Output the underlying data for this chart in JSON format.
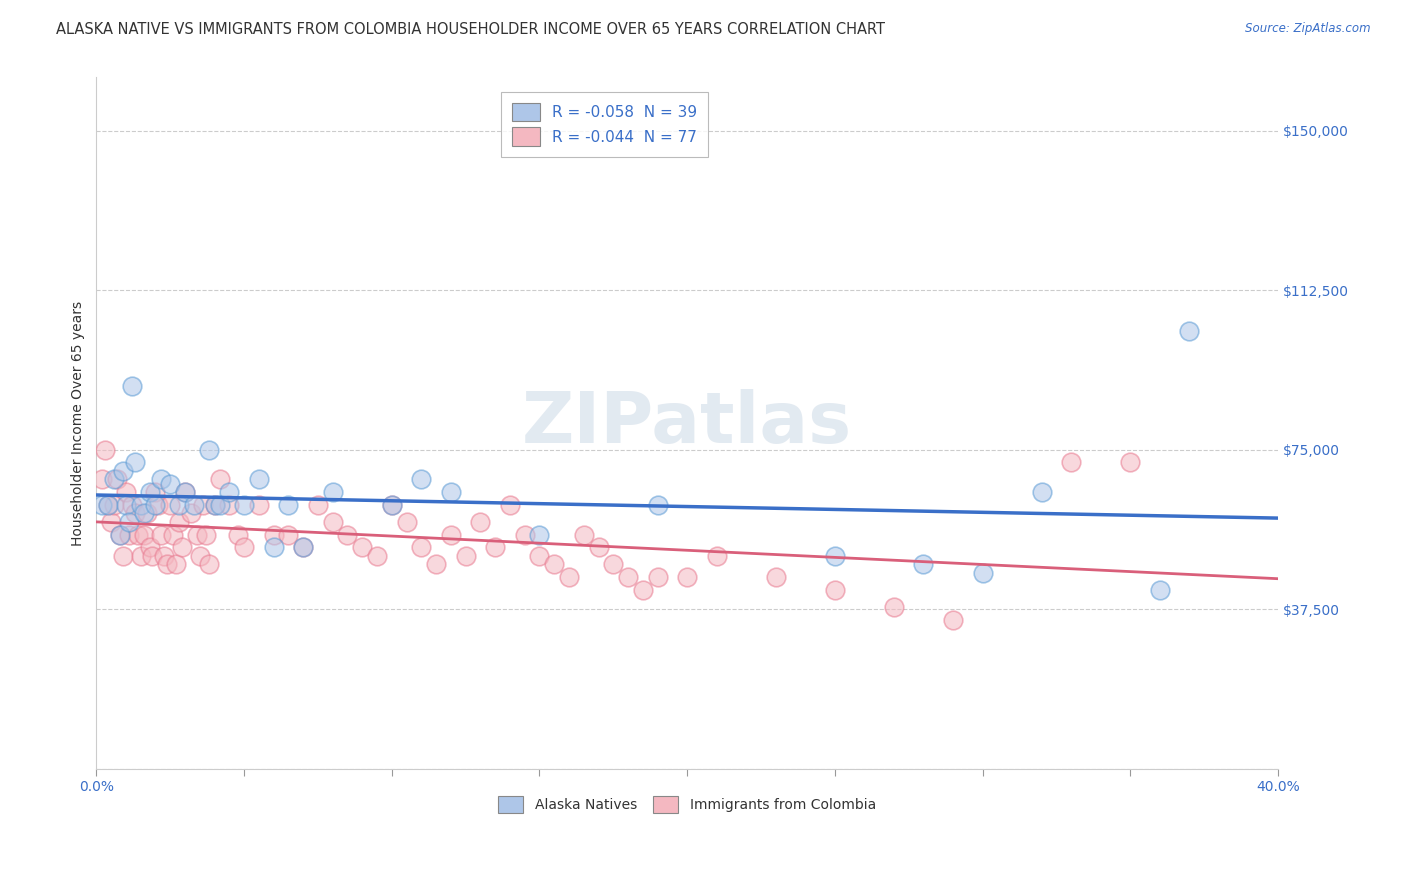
{
  "title": "ALASKA NATIVE VS IMMIGRANTS FROM COLOMBIA HOUSEHOLDER INCOME OVER 65 YEARS CORRELATION CHART",
  "source": "Source: ZipAtlas.com",
  "ylabel": "Householder Income Over 65 years",
  "xlim": [
    0.0,
    0.4
  ],
  "ylim": [
    0,
    162500
  ],
  "yticks": [
    0,
    37500,
    75000,
    112500,
    150000
  ],
  "ytick_labels": [
    "",
    "$37,500",
    "$75,000",
    "$112,500",
    "$150,000"
  ],
  "legend_entries": [
    {
      "label": "R = -0.058  N = 39"
    },
    {
      "label": "R = -0.044  N = 77"
    }
  ],
  "legend_label_bottom": [
    "Alaska Natives",
    "Immigrants from Colombia"
  ],
  "watermark": "ZIPatlas",
  "blue_scatter_color": "#aec6e8",
  "pink_scatter_color": "#f4b8c1",
  "blue_edge_color": "#5b9bd5",
  "pink_edge_color": "#e87a90",
  "blue_line_color": "#3a6fc8",
  "pink_line_color": "#d95f7a",
  "text_blue_color": "#3a6fc8",
  "grid_color": "#cccccc",
  "background_color": "#ffffff",
  "title_fontsize": 10.5,
  "axis_label_fontsize": 10,
  "tick_label_fontsize": 10,
  "scatter_size": 180,
  "scatter_alpha": 0.55,
  "scatter_linewidth": 1.2,
  "alaska_points": [
    [
      0.002,
      62000
    ],
    [
      0.004,
      62000
    ],
    [
      0.006,
      68000
    ],
    [
      0.008,
      55000
    ],
    [
      0.009,
      70000
    ],
    [
      0.01,
      62000
    ],
    [
      0.011,
      58000
    ],
    [
      0.012,
      90000
    ],
    [
      0.013,
      72000
    ],
    [
      0.015,
      62000
    ],
    [
      0.016,
      60000
    ],
    [
      0.018,
      65000
    ],
    [
      0.02,
      62000
    ],
    [
      0.022,
      68000
    ],
    [
      0.025,
      67000
    ],
    [
      0.028,
      62000
    ],
    [
      0.03,
      65000
    ],
    [
      0.033,
      62000
    ],
    [
      0.038,
      75000
    ],
    [
      0.04,
      62000
    ],
    [
      0.042,
      62000
    ],
    [
      0.045,
      65000
    ],
    [
      0.05,
      62000
    ],
    [
      0.055,
      68000
    ],
    [
      0.06,
      52000
    ],
    [
      0.065,
      62000
    ],
    [
      0.07,
      52000
    ],
    [
      0.08,
      65000
    ],
    [
      0.1,
      62000
    ],
    [
      0.11,
      68000
    ],
    [
      0.12,
      65000
    ],
    [
      0.15,
      55000
    ],
    [
      0.19,
      62000
    ],
    [
      0.25,
      50000
    ],
    [
      0.28,
      48000
    ],
    [
      0.3,
      46000
    ],
    [
      0.32,
      65000
    ],
    [
      0.36,
      42000
    ],
    [
      0.37,
      103000
    ]
  ],
  "colombia_points": [
    [
      0.002,
      68000
    ],
    [
      0.003,
      75000
    ],
    [
      0.004,
      62000
    ],
    [
      0.005,
      58000
    ],
    [
      0.006,
      62000
    ],
    [
      0.007,
      68000
    ],
    [
      0.008,
      55000
    ],
    [
      0.009,
      50000
    ],
    [
      0.01,
      65000
    ],
    [
      0.011,
      55000
    ],
    [
      0.012,
      62000
    ],
    [
      0.013,
      60000
    ],
    [
      0.014,
      55000
    ],
    [
      0.015,
      50000
    ],
    [
      0.016,
      55000
    ],
    [
      0.017,
      60000
    ],
    [
      0.018,
      52000
    ],
    [
      0.019,
      50000
    ],
    [
      0.02,
      65000
    ],
    [
      0.021,
      62000
    ],
    [
      0.022,
      55000
    ],
    [
      0.023,
      50000
    ],
    [
      0.024,
      48000
    ],
    [
      0.025,
      62000
    ],
    [
      0.026,
      55000
    ],
    [
      0.027,
      48000
    ],
    [
      0.028,
      58000
    ],
    [
      0.029,
      52000
    ],
    [
      0.03,
      65000
    ],
    [
      0.032,
      60000
    ],
    [
      0.034,
      55000
    ],
    [
      0.035,
      50000
    ],
    [
      0.036,
      62000
    ],
    [
      0.037,
      55000
    ],
    [
      0.038,
      48000
    ],
    [
      0.04,
      62000
    ],
    [
      0.042,
      68000
    ],
    [
      0.045,
      62000
    ],
    [
      0.048,
      55000
    ],
    [
      0.05,
      52000
    ],
    [
      0.055,
      62000
    ],
    [
      0.06,
      55000
    ],
    [
      0.065,
      55000
    ],
    [
      0.07,
      52000
    ],
    [
      0.075,
      62000
    ],
    [
      0.08,
      58000
    ],
    [
      0.085,
      55000
    ],
    [
      0.09,
      52000
    ],
    [
      0.095,
      50000
    ],
    [
      0.1,
      62000
    ],
    [
      0.105,
      58000
    ],
    [
      0.11,
      52000
    ],
    [
      0.115,
      48000
    ],
    [
      0.12,
      55000
    ],
    [
      0.125,
      50000
    ],
    [
      0.13,
      58000
    ],
    [
      0.135,
      52000
    ],
    [
      0.14,
      62000
    ],
    [
      0.145,
      55000
    ],
    [
      0.15,
      50000
    ],
    [
      0.155,
      48000
    ],
    [
      0.16,
      45000
    ],
    [
      0.165,
      55000
    ],
    [
      0.17,
      52000
    ],
    [
      0.175,
      48000
    ],
    [
      0.18,
      45000
    ],
    [
      0.185,
      42000
    ],
    [
      0.19,
      45000
    ],
    [
      0.2,
      45000
    ],
    [
      0.21,
      50000
    ],
    [
      0.23,
      45000
    ],
    [
      0.25,
      42000
    ],
    [
      0.27,
      38000
    ],
    [
      0.29,
      35000
    ],
    [
      0.33,
      72000
    ],
    [
      0.35,
      72000
    ]
  ]
}
